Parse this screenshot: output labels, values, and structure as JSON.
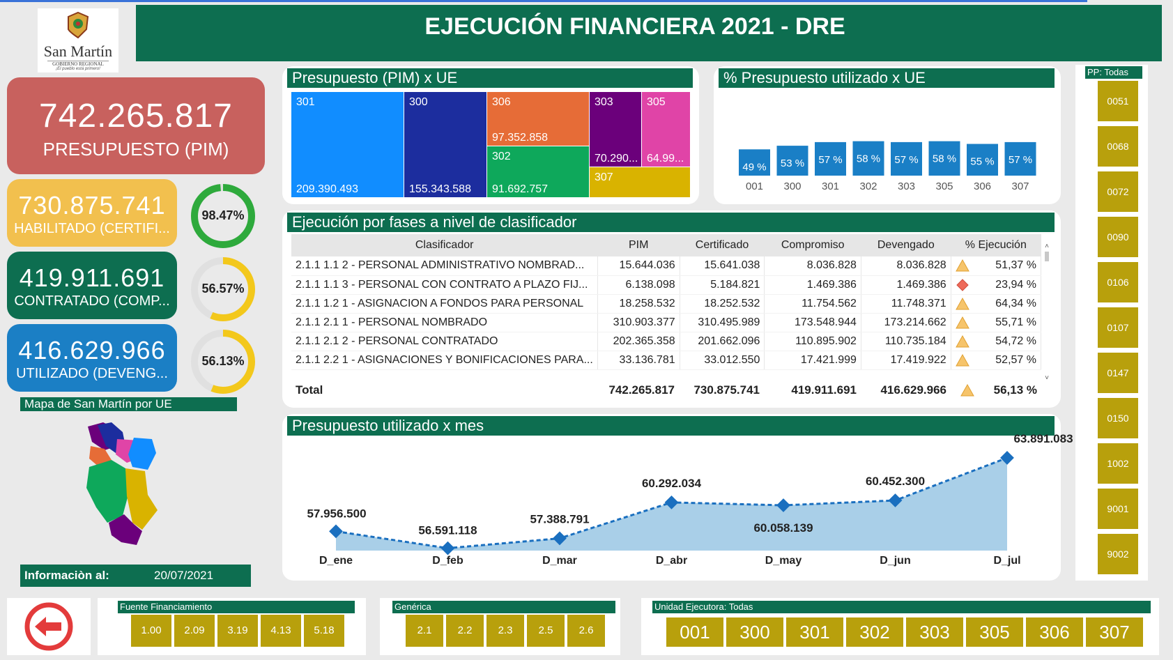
{
  "header": {
    "title": "EJECUCIÓN FINANCIERA 2021 - DRE"
  },
  "logo": {
    "name": "San Martín",
    "sub": "GOBIERNO REGIONAL",
    "tagline": "¡El pueblo está primero!"
  },
  "kpis": {
    "pim": {
      "value": "742.265.817",
      "label": "PRESUPUESTO (PIM)"
    },
    "habilitado": {
      "value": "730.875.741",
      "label": "HABILITADO (CERTIFI...",
      "pct": "98.47%",
      "pct_num": 98.47
    },
    "contratado": {
      "value": "419.911.691",
      "label": "CONTRATADO (COMP...",
      "pct": "56.57%",
      "pct_num": 56.57
    },
    "utilizado": {
      "value": "416.629.966",
      "label": "UTILIZADO (DEVENG...",
      "pct": "56.13%",
      "pct_num": 56.13
    }
  },
  "map": {
    "title": "Mapa de San Martín por UE"
  },
  "info": {
    "label": "Informaciòn al:",
    "date": "20/07/2021"
  },
  "treemap": {
    "title": "Presupuesto (PIM) x UE",
    "cells": [
      {
        "name": "301",
        "value": "209.390.493",
        "color": "#118dff"
      },
      {
        "name": "300",
        "value": "155.343.588",
        "color": "#1c2d9e"
      },
      {
        "name": "306",
        "value": "97.352.858",
        "color": "#e66c37"
      },
      {
        "name": "302",
        "value": "91.692.757",
        "color": "#0ea85b"
      },
      {
        "name": "303",
        "value": "70.290...",
        "color": "#6b007b"
      },
      {
        "name": "305",
        "value": "64.99...",
        "color": "#e044a7"
      },
      {
        "name": "307",
        "value": "",
        "color": "#d9b300"
      }
    ]
  },
  "bar_panel": {
    "title": "% Presupuesto utilizado x UE"
  },
  "table": {
    "title": "Ejecución por fases a nivel de clasificador",
    "columns": [
      "Clasificador",
      "PIM",
      "Certificado",
      "Compromiso",
      "Devengado",
      "% Ejecución"
    ],
    "rows": [
      {
        "c": "2.1.1 1.1 2 - PERSONAL ADMINISTRATIVO NOMBRAD...",
        "pim": "15.644.036",
        "cert": "15.641.038",
        "comp": "8.036.828",
        "dev": "8.036.828",
        "pct": "51,37 %",
        "status": "warning"
      },
      {
        "c": "2.1.1 1.1 3 - PERSONAL CON CONTRATO A PLAZO FIJ...",
        "pim": "6.138.098",
        "cert": "5.184.821",
        "comp": "1.469.386",
        "dev": "1.469.386",
        "pct": "23,94 %",
        "status": "danger"
      },
      {
        "c": "2.1.1 1.2 1 - ASIGNACION A FONDOS PARA PERSONAL",
        "pim": "18.258.532",
        "cert": "18.252.532",
        "comp": "11.754.562",
        "dev": "11.748.371",
        "pct": "64,34 %",
        "status": "warning"
      },
      {
        "c": "2.1.1 2.1 1 - PERSONAL NOMBRADO",
        "pim": "310.903.377",
        "cert": "310.495.989",
        "comp": "173.548.944",
        "dev": "173.214.662",
        "pct": "55,71 %",
        "status": "warning"
      },
      {
        "c": "2.1.1 2.1 2 - PERSONAL CONTRATADO",
        "pim": "202.365.358",
        "cert": "201.662.096",
        "comp": "110.895.902",
        "dev": "110.735.184",
        "pct": "54,72 %",
        "status": "warning"
      },
      {
        "c": "2.1.1 2.2 1 - ASIGNACIONES Y BONIFICACIONES PARA...",
        "pim": "33.136.781",
        "cert": "33.012.550",
        "comp": "17.421.999",
        "dev": "17.419.922",
        "pct": "52,57 %",
        "status": "warning"
      }
    ],
    "total": {
      "label": "Total",
      "pim": "742.265.817",
      "cert": "730.875.741",
      "comp": "419.911.691",
      "dev": "416.629.966",
      "pct": "56,13 %"
    }
  },
  "line_panel": {
    "title": "Presupuesto utilizado x mes"
  },
  "pp_slicer": {
    "title": "PP: Todas",
    "items": [
      "0051",
      "0068",
      "0072",
      "0090",
      "0106",
      "0107",
      "0147",
      "0150",
      "1002",
      "9001",
      "9002"
    ]
  },
  "fuente_slicer": {
    "title": "Fuente Financiamiento",
    "items": [
      "1.00",
      "2.09",
      "3.19",
      "4.13",
      "5.18"
    ]
  },
  "generica_slicer": {
    "title": "Genérica",
    "items": [
      "2.1",
      "2.2",
      "2.3",
      "2.5",
      "2.6"
    ]
  },
  "ue_slicer": {
    "title": "Unidad Ejecutora: Todas",
    "items": [
      "001",
      "300",
      "301",
      "302",
      "303",
      "305",
      "306",
      "307"
    ]
  },
  "colors": {
    "primary": "#0d6e50",
    "gold": "#b8a00c",
    "pim": "#c8615e",
    "habilitado": "#f2c04e",
    "utilizado": "#1b7fc5",
    "bar": "#1a7fc6"
  },
  "chart_data": [
    {
      "type": "bar",
      "title": "% Presupuesto utilizado x UE",
      "categories": [
        "001",
        "300",
        "301",
        "302",
        "303",
        "305",
        "306",
        "307"
      ],
      "values": [
        49,
        53,
        57,
        58,
        57,
        58,
        55,
        57
      ],
      "labels": [
        "49 %",
        "53 %",
        "57 %",
        "58 %",
        "57 %",
        "58 %",
        "55 %",
        "57 %"
      ]
    },
    {
      "type": "area",
      "title": "Presupuesto utilizado x mes",
      "categories": [
        "D_ene",
        "D_feb",
        "D_mar",
        "D_abr",
        "D_may",
        "D_jun",
        "D_jul"
      ],
      "values": [
        57956500,
        56591118,
        57388791,
        60292034,
        60058139,
        60452300,
        63891083
      ],
      "labels": [
        "57.956.500",
        "56.591.118",
        "57.388.791",
        "60.292.034",
        "60.058.139",
        "60.452.300",
        "63.891.083"
      ]
    }
  ]
}
